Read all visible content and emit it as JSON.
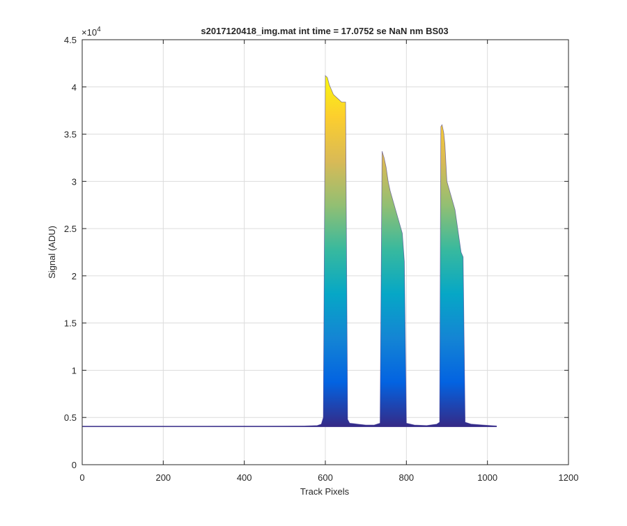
{
  "chart_data": {
    "type": "area",
    "title": "s2017120418_img.mat int time = 17.0752 se  NaN nm BS03",
    "xlabel": "Track Pixels",
    "ylabel": "Signal (ADU)",
    "y_exponent_label": "×10",
    "y_exponent_power": "4",
    "xlim": [
      0,
      1200
    ],
    "ylim": [
      0,
      4.5
    ],
    "y_scale_factor": 10000,
    "xticks": [
      0,
      200,
      400,
      600,
      800,
      1000,
      1200
    ],
    "xtick_labels": [
      "0",
      "200",
      "400",
      "600",
      "800",
      "1000",
      "1200"
    ],
    "yticks": [
      0,
      0.5,
      1,
      1.5,
      2,
      2.5,
      3,
      3.5,
      4,
      4.5
    ],
    "ytick_labels": [
      "0",
      "0.5",
      "1",
      "1.5",
      "2",
      "2.5",
      "3",
      "3.5",
      "4",
      "4.5"
    ],
    "grid": true,
    "colormap": [
      "#352a87",
      "#0363e1",
      "#1485d4",
      "#06a7c6",
      "#38b99e",
      "#92bf73",
      "#d9ba56",
      "#fcce2e",
      "#f9fb0e"
    ],
    "baseline": 0.405,
    "series": [
      {
        "x": [
          0,
          100,
          200,
          300,
          400,
          500,
          550,
          580,
          590,
          595,
          600,
          605,
          610,
          620,
          630,
          640,
          645,
          650,
          655,
          660,
          680,
          700,
          720,
          735,
          740,
          745,
          750,
          755,
          760,
          770,
          780,
          790,
          795,
          800,
          820,
          850,
          875,
          882,
          885,
          888,
          892,
          895,
          900,
          910,
          920,
          930,
          935,
          940,
          945,
          960,
          990,
          1023
        ],
        "y": [
          0.405,
          0.405,
          0.405,
          0.406,
          0.407,
          0.408,
          0.41,
          0.415,
          0.43,
          0.5,
          4.12,
          4.1,
          4.02,
          3.92,
          3.88,
          3.84,
          3.84,
          3.84,
          0.48,
          0.44,
          0.43,
          0.42,
          0.42,
          0.44,
          3.32,
          3.25,
          3.15,
          3.0,
          2.9,
          2.75,
          2.6,
          2.45,
          2.15,
          0.44,
          0.42,
          0.415,
          0.43,
          0.45,
          3.58,
          3.6,
          3.52,
          3.4,
          3.0,
          2.85,
          2.7,
          2.4,
          2.25,
          2.2,
          0.45,
          0.43,
          0.42,
          0.41
        ]
      }
    ]
  }
}
